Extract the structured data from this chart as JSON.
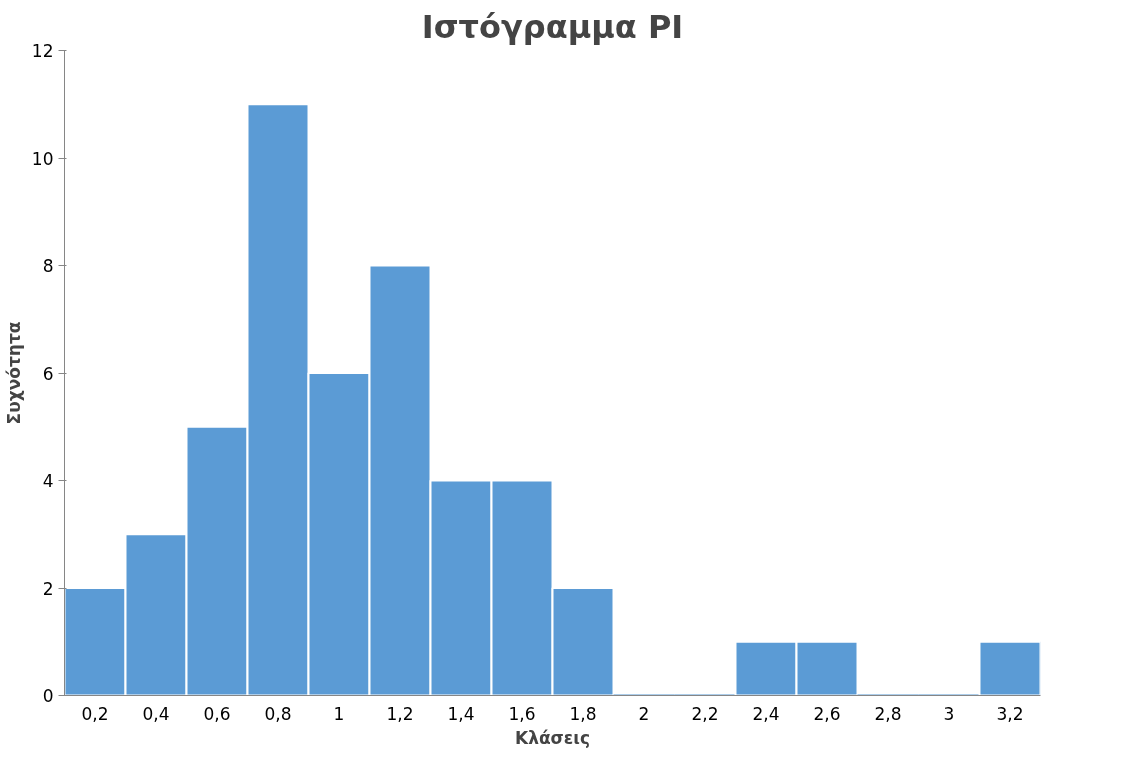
{
  "chart_data": {
    "type": "bar",
    "title": "Ιστόγραμμα PI",
    "xlabel": "Κλάσεις",
    "ylabel": "Συχνότητα",
    "categories": [
      "0,2",
      "0,4",
      "0,6",
      "0,8",
      "1",
      "1,2",
      "1,4",
      "1,6",
      "1,8",
      "2",
      "2,2",
      "2,4",
      "2,6",
      "2,8",
      "3",
      "3,2"
    ],
    "values": [
      2,
      3,
      5,
      11,
      6,
      8,
      4,
      4,
      2,
      0,
      0,
      1,
      1,
      0,
      0,
      1
    ],
    "color": "#5b9bd5",
    "ylim": [
      0,
      12
    ],
    "yticks": [
      0,
      2,
      4,
      6,
      8,
      10,
      12
    ],
    "grid": false
  }
}
